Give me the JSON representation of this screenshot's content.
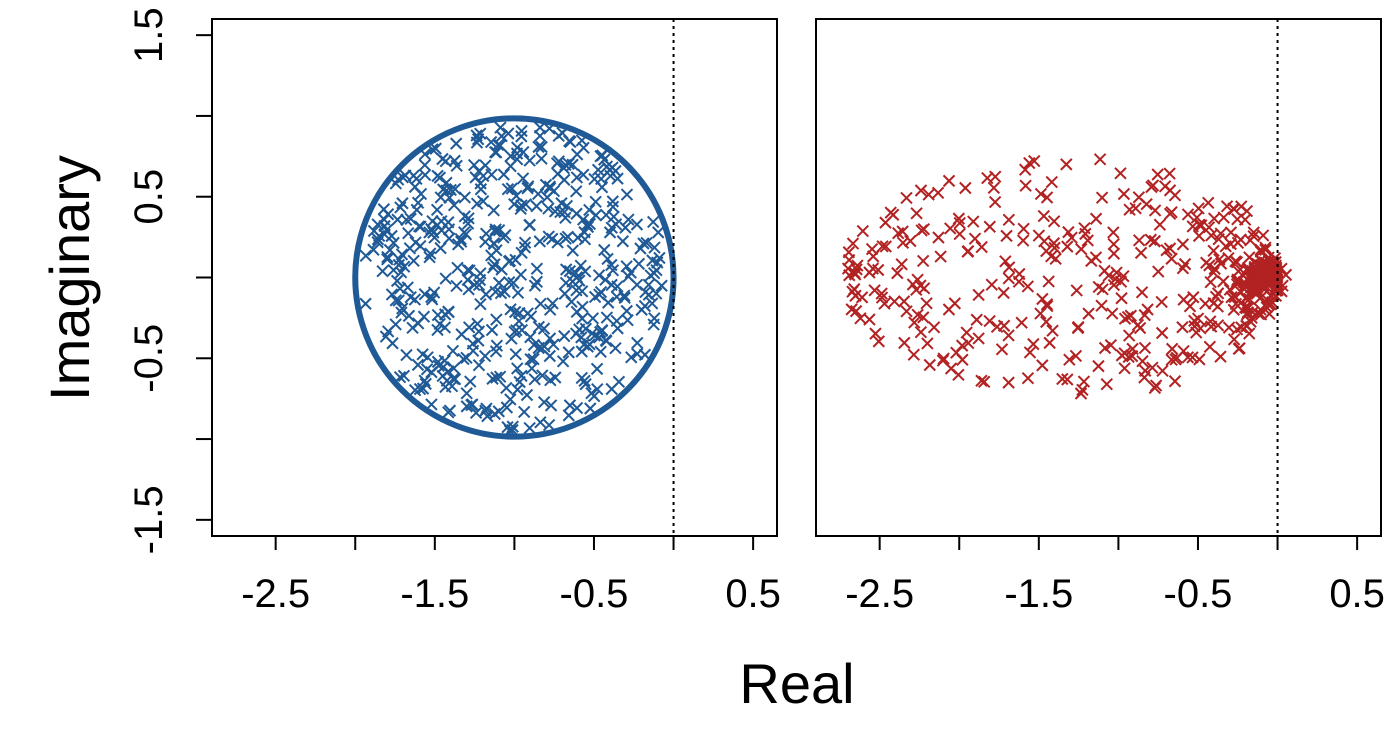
{
  "figure": {
    "xlabel": "Real",
    "ylabel": "Imaginary"
  },
  "chart_data": [
    {
      "type": "scatter",
      "panel": "left",
      "marker": "x",
      "color": "#1f5a96",
      "xlim": [
        -2.9,
        0.65
      ],
      "ylim": [
        -1.6,
        1.6
      ],
      "xticks": [
        -2.5,
        -1.5,
        -0.5,
        0.5
      ],
      "xtick_labels": [
        "-2.5",
        "-1.5",
        "-0.5",
        "0.5"
      ],
      "yticks": [
        -1.5,
        -0.5,
        0.5,
        1.5
      ],
      "ytick_labels": [
        "-1.5",
        "-0.5",
        "0.5",
        "1.5"
      ],
      "yticks_minor": [
        -1.0,
        0.0,
        1.0
      ],
      "reference_line": {
        "x": 0,
        "style": "dotted"
      },
      "circle": {
        "center": [
          -1,
          0
        ],
        "radius": 1,
        "color": "#1f5a96"
      },
      "point_count": 500,
      "distribution": "uniform in disk centered at -1 with radius 1"
    },
    {
      "type": "scatter",
      "panel": "right",
      "marker": "x",
      "color": "#b22222",
      "xlim": [
        -2.9,
        0.65
      ],
      "ylim": [
        -1.6,
        1.6
      ],
      "xticks": [
        -2.5,
        -1.5,
        -0.5,
        0.5
      ],
      "xtick_labels": [
        "-2.5",
        "-1.5",
        "-0.5",
        "0.5"
      ],
      "reference_line": {
        "x": 0,
        "style": "dotted"
      },
      "point_count": 520,
      "distribution": "teardrop: spread from -2.7 to 0, densest cluster near -0.1, imaginary span about ±1.05"
    }
  ]
}
